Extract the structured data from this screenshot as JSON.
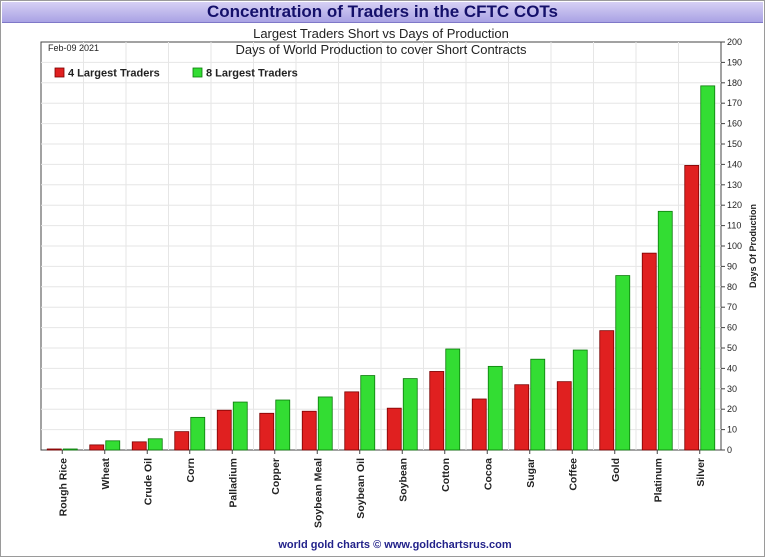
{
  "chart_data": {
    "type": "bar",
    "title": "Concentration of Traders in the CFTC COTs",
    "subtitle1": "Largest Traders Short vs Days of Production",
    "subtitle2": "Days of World Production to cover Short Contracts",
    "date": "Feb-09  2021",
    "ylabel": "Days Of Production",
    "ylim": [
      0,
      200
    ],
    "ytick_step": 10,
    "footer": "world gold charts © www.goldchartsrus.com",
    "categories": [
      "Rough Rice",
      "Wheat",
      "Crude Oil",
      "Corn",
      "Palladium",
      "Copper",
      "Soybean Meal",
      "Soybean Oil",
      "Soybean",
      "Cotton",
      "Cocoa",
      "Sugar",
      "Coffee",
      "Gold",
      "Platinum",
      "Silver"
    ],
    "series": [
      {
        "name": "4 Largest Traders",
        "color": "#e02020",
        "values": [
          0.5,
          2.5,
          4,
          9,
          19.5,
          18,
          19,
          28.5,
          20.5,
          38.5,
          25,
          32,
          33.5,
          58.5,
          96.5,
          139.5
        ]
      },
      {
        "name": "8 Largest Traders",
        "color": "#33dd33",
        "values": [
          0.5,
          4.5,
          5.5,
          16,
          23.5,
          24.5,
          26,
          36.5,
          35,
          49.5,
          41,
          44.5,
          49,
          85.5,
          117,
          178.5
        ]
      }
    ]
  }
}
